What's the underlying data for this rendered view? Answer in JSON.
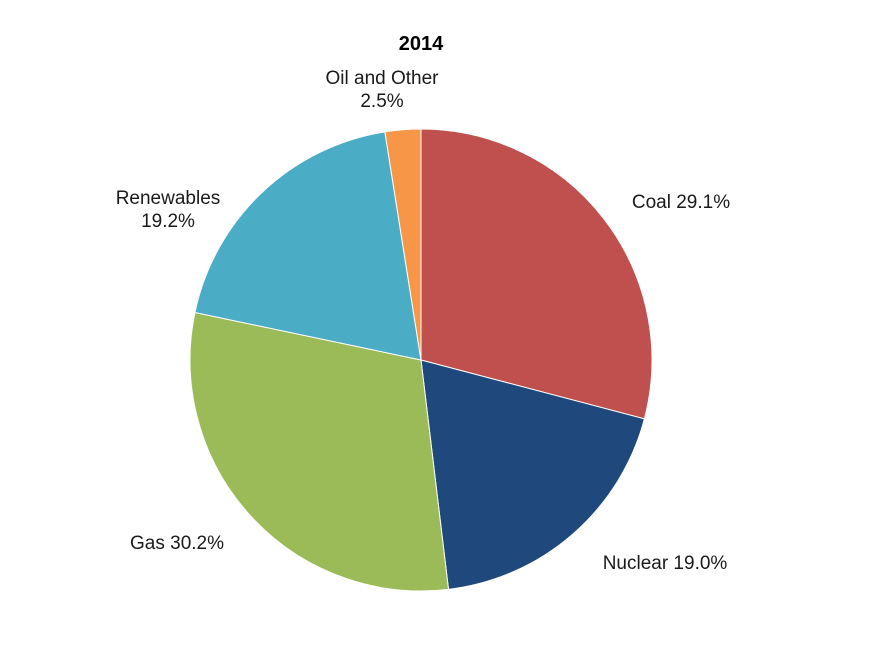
{
  "chart_data": {
    "type": "pie",
    "title": "2014",
    "slices": [
      {
        "name": "Coal",
        "value": 29.1,
        "label_lines": [
          "Coal 29.1%"
        ],
        "color": "#C0504D"
      },
      {
        "name": "Nuclear",
        "value": 19.0,
        "label_lines": [
          "Nuclear 19.0%"
        ],
        "color": "#1F497D"
      },
      {
        "name": "Gas",
        "value": 30.2,
        "label_lines": [
          "Gas 30.2%"
        ],
        "color": "#9BBB59"
      },
      {
        "name": "Renewables",
        "value": 19.2,
        "label_lines": [
          "Renewables",
          "19.2%"
        ],
        "color": "#4BACC6"
      },
      {
        "name": "Oil and Other",
        "value": 2.5,
        "label_lines": [
          "Oil and Other",
          "2.5%"
        ],
        "color": "#F79646"
      }
    ],
    "start_angle": "12 o'clock",
    "direction": "clockwise",
    "legend": "none"
  }
}
